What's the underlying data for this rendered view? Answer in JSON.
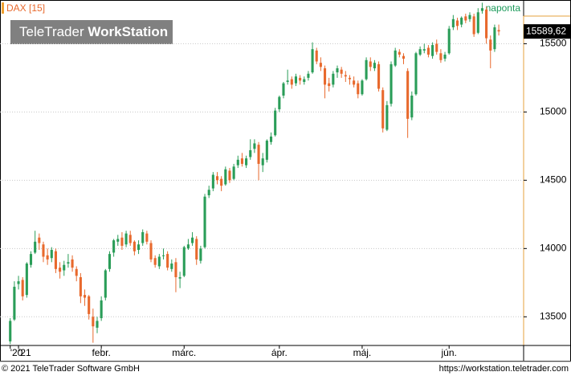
{
  "chart_data": {
    "type": "candlestick",
    "title": "DAX [15]",
    "interval": "naponta",
    "up_color": "#2a9d58",
    "down_color": "#e8692d",
    "ylim": [
      13290,
      15820
    ],
    "yticks": [
      13500,
      14000,
      14500,
      15000,
      15500
    ],
    "grid": true,
    "xlim": [
      -1.5,
      124
    ],
    "xticks": [
      {
        "value": 0,
        "label": "'20"
      },
      {
        "value": 2,
        "label": "'21"
      },
      {
        "value": 22,
        "label": "febr."
      },
      {
        "value": 42,
        "label": "márc."
      },
      {
        "value": 65,
        "label": "ápr."
      },
      {
        "value": 85,
        "label": "máj."
      },
      {
        "value": 106,
        "label": "jún."
      }
    ],
    "last": {
      "value": 15589.62,
      "label": "15589,62"
    },
    "ohlc": [
      [
        13320,
        13490,
        13300,
        13470
      ],
      [
        13480,
        13760,
        13470,
        13720
      ],
      [
        13740,
        13800,
        13700,
        13760
      ],
      [
        13770,
        13790,
        13620,
        13650
      ],
      [
        13660,
        13900,
        13640,
        13890
      ],
      [
        13880,
        13980,
        13860,
        13960
      ],
      [
        13970,
        14130,
        13960,
        14050
      ],
      [
        14080,
        14110,
        13990,
        14040
      ],
      [
        14030,
        14050,
        13900,
        13940
      ],
      [
        13950,
        14000,
        13880,
        13920
      ],
      [
        13930,
        14010,
        13900,
        13990
      ],
      [
        13980,
        14000,
        13820,
        13850
      ],
      [
        13860,
        13900,
        13780,
        13830
      ],
      [
        13840,
        13910,
        13800,
        13880
      ],
      [
        13890,
        13960,
        13860,
        13900
      ],
      [
        13920,
        13950,
        13830,
        13860
      ],
      [
        13850,
        13870,
        13760,
        13800
      ],
      [
        13790,
        13820,
        13600,
        13650
      ],
      [
        13660,
        13700,
        13580,
        13640
      ],
      [
        13650,
        13660,
        13480,
        13520
      ],
      [
        13500,
        13560,
        13310,
        13430
      ],
      [
        13420,
        13500,
        13380,
        13470
      ],
      [
        13490,
        13650,
        13470,
        13620
      ],
      [
        13640,
        13850,
        13620,
        13840
      ],
      [
        13850,
        13980,
        13830,
        13960
      ],
      [
        13970,
        14070,
        13940,
        14060
      ],
      [
        14050,
        14100,
        14020,
        14070
      ],
      [
        14080,
        14120,
        13990,
        14020
      ],
      [
        14030,
        14130,
        14010,
        14110
      ],
      [
        14100,
        14130,
        14020,
        14040
      ],
      [
        14050,
        14060,
        13950,
        13980
      ],
      [
        13990,
        14060,
        13960,
        14030
      ],
      [
        14040,
        14140,
        14020,
        14120
      ],
      [
        14110,
        14130,
        14030,
        14050
      ],
      [
        14040,
        14060,
        13900,
        13920
      ],
      [
        13930,
        13950,
        13860,
        13880
      ],
      [
        13870,
        13960,
        13850,
        13940
      ],
      [
        13950,
        14000,
        13920,
        13950
      ],
      [
        13960,
        13980,
        13840,
        13860
      ],
      [
        13850,
        13920,
        13830,
        13890
      ],
      [
        13900,
        13930,
        13680,
        13790
      ],
      [
        13780,
        13830,
        13710,
        13790
      ],
      [
        13800,
        14020,
        13790,
        14010
      ],
      [
        14000,
        14070,
        13990,
        14030
      ],
      [
        14040,
        14120,
        14020,
        14080
      ],
      [
        14070,
        14090,
        13880,
        13920
      ],
      [
        13910,
        14020,
        13890,
        14000
      ],
      [
        14010,
        14400,
        14000,
        14380
      ],
      [
        14390,
        14460,
        14370,
        14430
      ],
      [
        14440,
        14560,
        14420,
        14540
      ],
      [
        14530,
        14560,
        14470,
        14500
      ],
      [
        14510,
        14530,
        14420,
        14460
      ],
      [
        14470,
        14600,
        14460,
        14580
      ],
      [
        14570,
        14590,
        14480,
        14500
      ],
      [
        14510,
        14620,
        14500,
        14600
      ],
      [
        14610,
        14680,
        14590,
        14650
      ],
      [
        14660,
        14700,
        14600,
        14620
      ],
      [
        14610,
        14680,
        14590,
        14660
      ],
      [
        14670,
        14800,
        14650,
        14720
      ],
      [
        14730,
        14800,
        14700,
        14770
      ],
      [
        14760,
        14780,
        14500,
        14620
      ],
      [
        14610,
        14700,
        14560,
        14660
      ],
      [
        14650,
        14800,
        14630,
        14790
      ],
      [
        14780,
        14850,
        14760,
        14820
      ],
      [
        14830,
        15030,
        14820,
        15010
      ],
      [
        15020,
        15120,
        15000,
        15110
      ],
      [
        15120,
        15220,
        15100,
        15210
      ],
      [
        15220,
        15310,
        15200,
        15230
      ],
      [
        15240,
        15260,
        15170,
        15200
      ],
      [
        15210,
        15280,
        15190,
        15260
      ],
      [
        15250,
        15270,
        15200,
        15230
      ],
      [
        15220,
        15260,
        15200,
        15240
      ],
      [
        15250,
        15300,
        15230,
        15280
      ],
      [
        15290,
        15510,
        15280,
        15460
      ],
      [
        15450,
        15470,
        15350,
        15370
      ],
      [
        15360,
        15400,
        15300,
        15330
      ],
      [
        15320,
        15340,
        15100,
        15200
      ],
      [
        15210,
        15250,
        15150,
        15190
      ],
      [
        15200,
        15300,
        15180,
        15280
      ],
      [
        15290,
        15340,
        15250,
        15320
      ],
      [
        15310,
        15330,
        15250,
        15280
      ],
      [
        15270,
        15300,
        15220,
        15260
      ],
      [
        15250,
        15270,
        15200,
        15240
      ],
      [
        15230,
        15260,
        15180,
        15200
      ],
      [
        15210,
        15230,
        15100,
        15130
      ],
      [
        15130,
        15240,
        15120,
        15230
      ],
      [
        15240,
        15400,
        15230,
        15380
      ],
      [
        15370,
        15400,
        15300,
        15330
      ],
      [
        15320,
        15380,
        15300,
        15360
      ],
      [
        15350,
        15370,
        15150,
        15170
      ],
      [
        15160,
        15180,
        14850,
        14880
      ],
      [
        14870,
        15080,
        14860,
        15050
      ],
      [
        15060,
        15370,
        15040,
        15350
      ],
      [
        15340,
        15470,
        15330,
        15450
      ],
      [
        15440,
        15460,
        15400,
        15420
      ],
      [
        15410,
        15430,
        15350,
        15390
      ],
      [
        15300,
        15320,
        14810,
        14950
      ],
      [
        14960,
        15150,
        14940,
        15120
      ],
      [
        15130,
        15440,
        15120,
        15430
      ],
      [
        15420,
        15480,
        15410,
        15460
      ],
      [
        15450,
        15500,
        15430,
        15460
      ],
      [
        15470,
        15490,
        15400,
        15420
      ],
      [
        15410,
        15510,
        15390,
        15490
      ],
      [
        15500,
        15530,
        15420,
        15440
      ],
      [
        15430,
        15460,
        15360,
        15380
      ],
      [
        15390,
        15440,
        15370,
        15420
      ],
      [
        15430,
        15630,
        15420,
        15610
      ],
      [
        15620,
        15710,
        15600,
        15680
      ],
      [
        15670,
        15690,
        15600,
        15630
      ],
      [
        15640,
        15700,
        15620,
        15690
      ],
      [
        15700,
        15720,
        15650,
        15670
      ],
      [
        15680,
        15730,
        15660,
        15710
      ],
      [
        15700,
        15720,
        15550,
        15570
      ],
      [
        15580,
        15760,
        15570,
        15730
      ],
      [
        15740,
        15800,
        15720,
        15760
      ],
      [
        15750,
        15770,
        15500,
        15540
      ],
      [
        15530,
        15560,
        15320,
        15450
      ],
      [
        15460,
        15640,
        15440,
        15620
      ],
      [
        15600,
        15640,
        15560,
        15589.62
      ]
    ]
  },
  "watermark": {
    "light": "TeleTrader",
    "bold": "WorkStation"
  },
  "footer": {
    "copyright": "© 2021 TeleTrader Software GmbH",
    "url": "https://workstation.teletrader.com"
  }
}
